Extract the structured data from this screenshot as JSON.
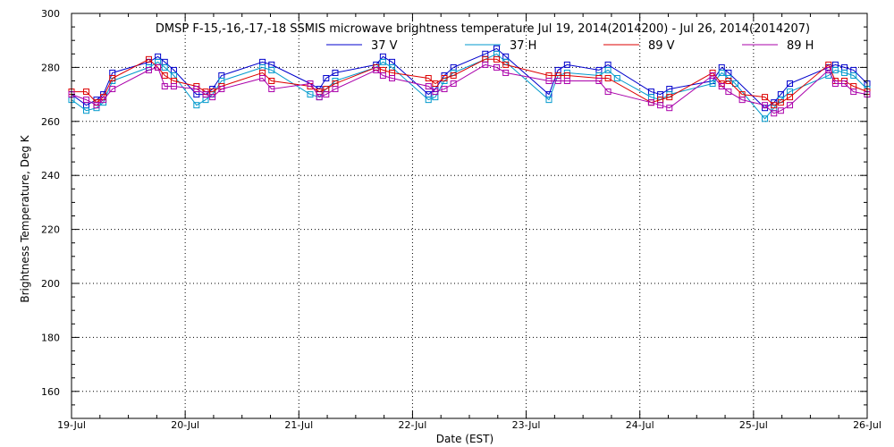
{
  "chart_data": {
    "type": "line",
    "title": "DMSP F-15,-16,-17,-18 SSMIS microwave brightness temperature Jul 19, 2014(2014200) - Jul 26, 2014(2014207)",
    "xlabel": "Date (EST)",
    "ylabel": "Brightness Temperature, Deg K",
    "xlim": [
      0,
      7
    ],
    "ylim": [
      150,
      300
    ],
    "x_ticks": [
      0,
      1,
      2,
      3,
      4,
      5,
      6,
      7
    ],
    "x_tick_labels": [
      "19-Jul",
      "20-Jul",
      "21-Jul",
      "22-Jul",
      "23-Jul",
      "24-Jul",
      "25-Jul",
      "26-Jul"
    ],
    "y_ticks": [
      160,
      180,
      200,
      220,
      240,
      260,
      280,
      300
    ],
    "grid": true,
    "legend_position": "top-center",
    "series": [
      {
        "name": "37 V",
        "color": "#0000cc",
        "x": [
          0.0,
          0.13,
          0.22,
          0.28,
          0.36,
          0.68,
          0.76,
          0.82,
          0.9,
          1.1,
          1.18,
          1.24,
          1.32,
          1.68,
          1.76,
          2.1,
          2.18,
          2.24,
          2.32,
          2.68,
          2.74,
          2.82,
          3.14,
          3.2,
          3.28,
          3.36,
          3.64,
          3.74,
          3.82,
          4.2,
          4.28,
          4.36,
          4.64,
          4.72,
          5.1,
          5.18,
          5.26,
          5.64,
          5.72,
          5.78,
          6.1,
          6.18,
          6.24,
          6.32,
          6.66,
          6.72,
          6.8,
          6.88,
          7.0
        ],
        "y": [
          270,
          266,
          268,
          270,
          278,
          282,
          284,
          282,
          279,
          270,
          270,
          272,
          277,
          282,
          281,
          274,
          272,
          276,
          278,
          281,
          284,
          282,
          270,
          272,
          277,
          280,
          285,
          287,
          284,
          270,
          279,
          281,
          279,
          281,
          271,
          270,
          272,
          275,
          280,
          278,
          265,
          267,
          270,
          274,
          280,
          281,
          280,
          279,
          274
        ]
      },
      {
        "name": "37 H",
        "color": "#0099cc",
        "x": [
          0.0,
          0.13,
          0.22,
          0.28,
          0.36,
          0.68,
          0.76,
          0.82,
          0.9,
          1.1,
          1.18,
          1.24,
          1.32,
          1.68,
          1.76,
          2.1,
          2.18,
          2.24,
          2.32,
          2.68,
          2.74,
          2.82,
          3.14,
          3.2,
          3.28,
          3.36,
          3.64,
          3.74,
          3.82,
          4.2,
          4.28,
          4.36,
          4.64,
          4.72,
          4.8,
          5.1,
          5.18,
          5.26,
          5.64,
          5.72,
          5.78,
          5.84,
          6.1,
          6.18,
          6.24,
          6.32,
          6.66,
          6.72,
          6.8,
          6.88,
          7.0
        ],
        "y": [
          268,
          264,
          265,
          267,
          275,
          280,
          282,
          280,
          277,
          266,
          268,
          270,
          275,
          280,
          279,
          270,
          269,
          272,
          275,
          280,
          282,
          280,
          268,
          269,
          275,
          278,
          283,
          285,
          282,
          268,
          277,
          278,
          277,
          279,
          276,
          269,
          268,
          270,
          274,
          278,
          276,
          274,
          261,
          265,
          268,
          271,
          277,
          279,
          278,
          277,
          272
        ]
      },
      {
        "name": "89 V",
        "color": "#dd0000",
        "x": [
          0.0,
          0.13,
          0.22,
          0.28,
          0.36,
          0.68,
          0.76,
          0.82,
          0.9,
          1.1,
          1.18,
          1.24,
          1.32,
          1.68,
          1.76,
          2.1,
          2.18,
          2.24,
          2.32,
          2.68,
          2.74,
          2.82,
          3.14,
          3.2,
          3.28,
          3.36,
          3.64,
          3.74,
          3.82,
          4.2,
          4.28,
          4.36,
          4.64,
          4.72,
          5.1,
          5.18,
          5.26,
          5.64,
          5.72,
          5.78,
          5.9,
          6.1,
          6.18,
          6.24,
          6.32,
          6.66,
          6.72,
          6.8,
          6.88,
          7.0
        ],
        "y": [
          271,
          271,
          267,
          269,
          276,
          283,
          280,
          277,
          275,
          273,
          271,
          271,
          273,
          278,
          275,
          273,
          271,
          272,
          274,
          280,
          279,
          278,
          276,
          274,
          276,
          277,
          283,
          283,
          281,
          277,
          277,
          277,
          276,
          276,
          267,
          268,
          269,
          278,
          274,
          275,
          270,
          269,
          266,
          267,
          269,
          281,
          275,
          275,
          273,
          271
        ]
      },
      {
        "name": "89 H",
        "color": "#aa00aa",
        "x": [
          0.0,
          0.13,
          0.22,
          0.28,
          0.36,
          0.68,
          0.76,
          0.82,
          0.9,
          1.1,
          1.18,
          1.24,
          1.32,
          1.68,
          1.76,
          2.1,
          2.18,
          2.24,
          2.32,
          2.68,
          2.74,
          2.82,
          3.14,
          3.2,
          3.28,
          3.36,
          3.64,
          3.74,
          3.82,
          4.2,
          4.28,
          4.36,
          4.64,
          4.72,
          5.1,
          5.18,
          5.26,
          5.64,
          5.72,
          5.78,
          5.9,
          6.1,
          6.18,
          6.24,
          6.32,
          6.66,
          6.72,
          6.8,
          6.88,
          7.0
        ],
        "y": [
          270,
          268,
          266,
          268,
          272,
          279,
          280,
          273,
          273,
          272,
          270,
          269,
          272,
          276,
          272,
          274,
          269,
          270,
          272,
          279,
          277,
          276,
          273,
          271,
          272,
          274,
          281,
          280,
          278,
          275,
          275,
          275,
          275,
          271,
          267,
          266,
          265,
          277,
          273,
          271,
          268,
          266,
          263,
          264,
          266,
          279,
          274,
          274,
          271,
          270
        ]
      }
    ]
  }
}
